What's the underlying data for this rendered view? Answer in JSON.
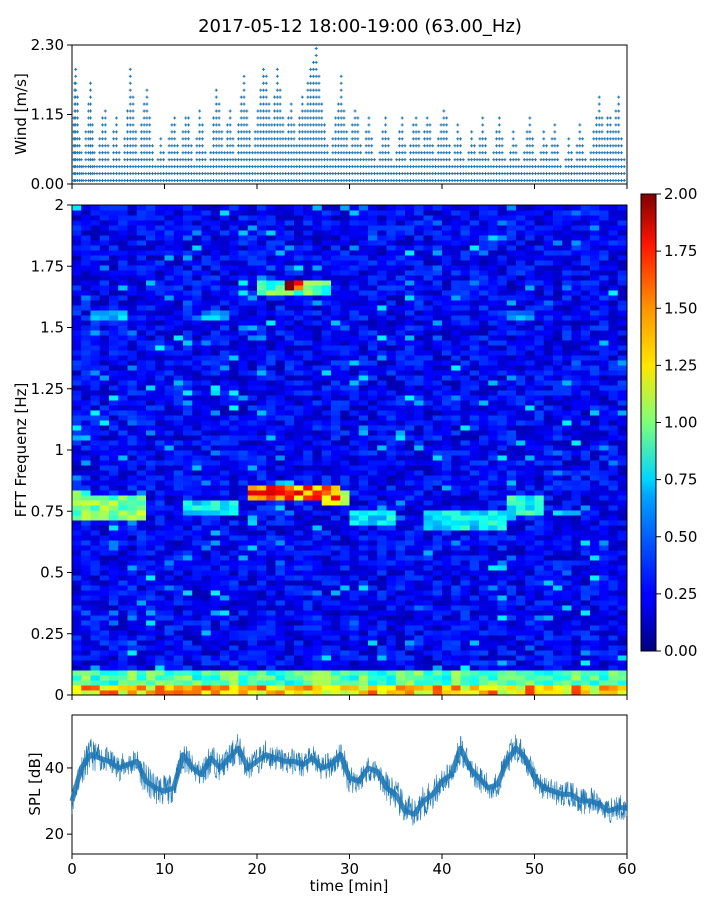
{
  "title": "2017-05-12 18:00-19:00 (63.00_Hz)",
  "colors": {
    "series": "#1f77b4",
    "axis": "#000000",
    "background": "#ffffff"
  },
  "chart_data": [
    {
      "type": "scatter",
      "ylabel": "Wind [m/s]",
      "xlim": [
        0,
        60
      ],
      "ylim": [
        0,
        2.3
      ],
      "yticks": [
        0,
        1.15,
        2.3
      ],
      "ytick_labels": [
        "0.00",
        "1.15",
        "2.30"
      ],
      "xticks": [
        0,
        10,
        20,
        30,
        40,
        50,
        60
      ],
      "xtick_labels_visible": false,
      "grid": false,
      "marker": "+",
      "points": [
        [
          0.2,
          1.2
        ],
        [
          0.3,
          1.7
        ],
        [
          0.4,
          2.0
        ],
        [
          0.6,
          1.5
        ],
        [
          0.8,
          0.8
        ],
        [
          1.0,
          0.6
        ],
        [
          1.2,
          0.4
        ],
        [
          1.5,
          0.9
        ],
        [
          1.8,
          1.4
        ],
        [
          2.0,
          1.7
        ],
        [
          2.2,
          1.0
        ],
        [
          2.4,
          0.6
        ],
        [
          2.7,
          0.3
        ],
        [
          3.0,
          0.8
        ],
        [
          3.3,
          1.1
        ],
        [
          3.6,
          1.3
        ],
        [
          3.9,
          0.7
        ],
        [
          4.2,
          0.4
        ],
        [
          4.5,
          0.9
        ],
        [
          4.8,
          1.1
        ],
        [
          5.1,
          0.6
        ],
        [
          5.4,
          0.3
        ],
        [
          5.7,
          0.8
        ],
        [
          6.0,
          1.3
        ],
        [
          6.3,
          1.9
        ],
        [
          6.6,
          1.5
        ],
        [
          6.9,
          0.9
        ],
        [
          7.2,
          0.5
        ],
        [
          7.5,
          1.0
        ],
        [
          7.8,
          1.4
        ],
        [
          8.1,
          1.6
        ],
        [
          8.4,
          1.1
        ],
        [
          8.7,
          0.7
        ],
        [
          9.0,
          0.3
        ],
        [
          9.3,
          0.5
        ],
        [
          9.6,
          0.8
        ],
        [
          9.9,
          0.6
        ],
        [
          10.2,
          0.4
        ],
        [
          10.5,
          0.8
        ],
        [
          10.8,
          1.0
        ],
        [
          11.1,
          1.2
        ],
        [
          11.4,
          0.7
        ],
        [
          11.7,
          0.5
        ],
        [
          12.0,
          0.9
        ],
        [
          12.3,
          1.2
        ],
        [
          12.6,
          1.1
        ],
        [
          12.9,
          0.7
        ],
        [
          13.2,
          0.4
        ],
        [
          13.5,
          0.8
        ],
        [
          13.8,
          1.3
        ],
        [
          14.1,
          1.0
        ],
        [
          14.4,
          0.6
        ],
        [
          14.7,
          0.3
        ],
        [
          15.0,
          0.6
        ],
        [
          15.3,
          1.1
        ],
        [
          15.6,
          1.6
        ],
        [
          15.9,
          1.4
        ],
        [
          16.2,
          0.9
        ],
        [
          16.5,
          0.6
        ],
        [
          16.8,
          1.0
        ],
        [
          17.1,
          1.3
        ],
        [
          17.4,
          0.8
        ],
        [
          17.7,
          0.5
        ],
        [
          18.0,
          1.0
        ],
        [
          18.3,
          1.5
        ],
        [
          18.6,
          1.8
        ],
        [
          18.9,
          1.3
        ],
        [
          19.2,
          0.9
        ],
        [
          19.5,
          0.6
        ],
        [
          19.8,
          0.9
        ],
        [
          20.1,
          1.3
        ],
        [
          20.4,
          1.6
        ],
        [
          20.7,
          2.0
        ],
        [
          21.0,
          1.8
        ],
        [
          21.3,
          1.4
        ],
        [
          21.6,
          1.0
        ],
        [
          21.9,
          1.5
        ],
        [
          22.2,
          1.9
        ],
        [
          22.5,
          1.6
        ],
        [
          22.8,
          1.2
        ],
        [
          23.1,
          0.8
        ],
        [
          23.4,
          1.1
        ],
        [
          23.7,
          1.4
        ],
        [
          24.0,
          1.0
        ],
        [
          24.3,
          0.7
        ],
        [
          24.6,
          1.2
        ],
        [
          24.9,
          1.5
        ],
        [
          25.2,
          1.3
        ],
        [
          25.5,
          1.7
        ],
        [
          25.8,
          1.9
        ],
        [
          26.1,
          2.1
        ],
        [
          26.4,
          2.3
        ],
        [
          26.7,
          1.8
        ],
        [
          27.0,
          1.4
        ],
        [
          27.3,
          1.0
        ],
        [
          27.6,
          0.7
        ],
        [
          27.9,
          0.5
        ],
        [
          28.2,
          0.8
        ],
        [
          28.5,
          1.1
        ],
        [
          28.8,
          1.4
        ],
        [
          29.1,
          1.8
        ],
        [
          29.4,
          1.3
        ],
        [
          29.7,
          0.9
        ],
        [
          30.0,
          0.6
        ],
        [
          30.3,
          1.0
        ],
        [
          30.6,
          1.3
        ],
        [
          30.9,
          1.1
        ],
        [
          31.2,
          0.7
        ],
        [
          31.5,
          0.5
        ],
        [
          31.8,
          0.9
        ],
        [
          32.1,
          1.2
        ],
        [
          32.4,
          0.8
        ],
        [
          32.7,
          0.5
        ],
        [
          33.0,
          0.3
        ],
        [
          33.3,
          0.6
        ],
        [
          33.6,
          0.9
        ],
        [
          33.9,
          1.2
        ],
        [
          34.2,
          0.8
        ],
        [
          34.5,
          0.5
        ],
        [
          34.8,
          0.3
        ],
        [
          35.1,
          0.6
        ],
        [
          35.4,
          0.9
        ],
        [
          35.7,
          1.1
        ],
        [
          36.0,
          0.7
        ],
        [
          36.3,
          0.4
        ],
        [
          36.6,
          0.7
        ],
        [
          36.9,
          1.0
        ],
        [
          37.2,
          1.2
        ],
        [
          37.5,
          0.9
        ],
        [
          37.8,
          0.6
        ],
        [
          38.1,
          0.9
        ],
        [
          38.4,
          1.2
        ],
        [
          38.7,
          1.0
        ],
        [
          39.0,
          0.7
        ],
        [
          39.3,
          0.5
        ],
        [
          39.6,
          0.8
        ],
        [
          39.9,
          1.0
        ],
        [
          40.2,
          1.3
        ],
        [
          40.5,
          1.1
        ],
        [
          40.8,
          0.7
        ],
        [
          41.1,
          0.4
        ],
        [
          41.4,
          0.7
        ],
        [
          41.7,
          1.0
        ],
        [
          42.0,
          0.8
        ],
        [
          42.3,
          0.5
        ],
        [
          42.6,
          0.3
        ],
        [
          42.9,
          0.6
        ],
        [
          43.2,
          0.9
        ],
        [
          43.5,
          0.7
        ],
        [
          43.8,
          0.5
        ],
        [
          44.1,
          0.8
        ],
        [
          44.4,
          1.1
        ],
        [
          44.7,
          0.8
        ],
        [
          45.0,
          0.5
        ],
        [
          45.3,
          0.3
        ],
        [
          45.6,
          0.6
        ],
        [
          45.9,
          0.9
        ],
        [
          46.2,
          1.1
        ],
        [
          46.5,
          0.8
        ],
        [
          46.8,
          0.5
        ],
        [
          47.1,
          0.3
        ],
        [
          47.4,
          0.6
        ],
        [
          47.7,
          0.9
        ],
        [
          48.0,
          0.7
        ],
        [
          48.3,
          0.5
        ],
        [
          48.6,
          0.3
        ],
        [
          48.9,
          0.6
        ],
        [
          49.2,
          0.9
        ],
        [
          49.5,
          1.1
        ],
        [
          49.8,
          0.8
        ],
        [
          50.1,
          0.5
        ],
        [
          50.4,
          0.3
        ],
        [
          50.7,
          0.6
        ],
        [
          51.0,
          0.9
        ],
        [
          51.3,
          0.7
        ],
        [
          51.6,
          0.5
        ],
        [
          51.9,
          0.8
        ],
        [
          52.2,
          1.0
        ],
        [
          52.5,
          0.7
        ],
        [
          52.8,
          0.4
        ],
        [
          53.1,
          0.2
        ],
        [
          53.4,
          0.5
        ],
        [
          53.7,
          0.8
        ],
        [
          54.0,
          0.6
        ],
        [
          54.3,
          0.4
        ],
        [
          54.6,
          0.7
        ],
        [
          54.9,
          1.0
        ],
        [
          55.2,
          0.8
        ],
        [
          55.5,
          0.5
        ],
        [
          55.8,
          0.3
        ],
        [
          56.1,
          0.6
        ],
        [
          56.4,
          0.9
        ],
        [
          56.7,
          1.2
        ],
        [
          57.0,
          1.5
        ],
        [
          57.3,
          1.1
        ],
        [
          57.6,
          0.8
        ],
        [
          57.9,
          1.1
        ],
        [
          58.2,
          1.2
        ],
        [
          58.5,
          0.9
        ],
        [
          58.8,
          1.3
        ],
        [
          59.1,
          1.5
        ],
        [
          59.4,
          0.8
        ],
        [
          59.7,
          0.5
        ]
      ]
    },
    {
      "type": "heatmap",
      "ylabel": "FFT Frequenz [Hz]",
      "xlim": [
        0,
        60
      ],
      "ylim": [
        0,
        2
      ],
      "yticks": [
        0,
        0.25,
        0.5,
        0.75,
        1,
        1.25,
        1.5,
        1.75,
        2
      ],
      "ytick_labels": [
        "0",
        "0.25",
        "0.5",
        "0.75",
        "1",
        "1.25",
        "1.5",
        "1.75",
        "2"
      ],
      "xtick_labels_visible": false,
      "colormap": "jet",
      "background_level": 0.25,
      "colorbar": {
        "vmin": 0,
        "vmax": 2,
        "ticks": [
          0,
          0.25,
          0.5,
          0.75,
          1.0,
          1.25,
          1.5,
          1.75,
          2.0
        ],
        "tick_labels": [
          "0.00",
          "0.25",
          "0.50",
          "0.75",
          "1.00",
          "1.25",
          "1.50",
          "1.75",
          "2.00"
        ]
      },
      "features": [
        {
          "x0": 0,
          "x1": 60,
          "f": 0.01,
          "df": 0.03,
          "value": 1.5
        },
        {
          "x0": 0,
          "x1": 60,
          "f": 0.05,
          "df": 0.05,
          "value": 1.0
        },
        {
          "x0": 0,
          "x1": 2,
          "f": 0.8,
          "df": 0.03,
          "value": 1.0
        },
        {
          "x0": 0,
          "x1": 8,
          "f": 0.76,
          "df": 0.05,
          "value": 1.1
        },
        {
          "x0": 12,
          "x1": 18,
          "f": 0.76,
          "df": 0.03,
          "value": 0.8
        },
        {
          "x0": 19,
          "x1": 29,
          "f": 0.82,
          "df": 0.03,
          "value": 1.7
        },
        {
          "x0": 27,
          "x1": 30,
          "f": 0.8,
          "df": 0.03,
          "value": 1.3
        },
        {
          "x0": 30,
          "x1": 35,
          "f": 0.72,
          "df": 0.03,
          "value": 0.8
        },
        {
          "x0": 38,
          "x1": 47,
          "f": 0.72,
          "df": 0.04,
          "value": 0.8
        },
        {
          "x0": 47,
          "x1": 51,
          "f": 0.78,
          "df": 0.04,
          "value": 0.9
        },
        {
          "x0": 20,
          "x1": 28,
          "f": 1.67,
          "df": 0.03,
          "value": 1.0
        },
        {
          "x0": 23,
          "x1": 25,
          "f": 1.67,
          "df": 0.02,
          "value": 1.9
        },
        {
          "x0": 2,
          "x1": 6,
          "f": 1.56,
          "df": 0.02,
          "value": 0.7
        },
        {
          "x0": 14,
          "x1": 17,
          "f": 1.55,
          "df": 0.02,
          "value": 0.6
        },
        {
          "x0": 47,
          "x1": 50,
          "f": 1.55,
          "df": 0.02,
          "value": 0.6
        }
      ]
    },
    {
      "type": "line",
      "ylabel": "SPL [dB]",
      "xlabel": "time [min]",
      "xlim": [
        0,
        60
      ],
      "ylim": [
        14,
        56
      ],
      "yticks": [
        20,
        40
      ],
      "ytick_labels": [
        "20",
        "40"
      ],
      "xticks": [
        0,
        10,
        20,
        30,
        40,
        50,
        60
      ],
      "xtick_labels": [
        "0",
        "10",
        "20",
        "30",
        "40",
        "50",
        "60"
      ],
      "grid": false,
      "x": [
        0,
        1,
        2,
        3,
        4,
        5,
        6,
        7,
        8,
        9,
        10,
        11,
        12,
        13,
        14,
        15,
        16,
        17,
        18,
        19,
        20,
        21,
        22,
        23,
        24,
        25,
        26,
        27,
        28,
        29,
        30,
        31,
        32,
        33,
        34,
        35,
        36,
        37,
        38,
        39,
        40,
        41,
        42,
        43,
        44,
        45,
        46,
        47,
        48,
        49,
        50,
        51,
        52,
        53,
        54,
        55,
        56,
        57,
        58,
        59,
        60
      ],
      "y": [
        30,
        40,
        44,
        43,
        42,
        40,
        41,
        42,
        36,
        34,
        33,
        34,
        44,
        40,
        38,
        43,
        40,
        43,
        46,
        40,
        42,
        44,
        43,
        42,
        42,
        41,
        43,
        40,
        41,
        44,
        37,
        36,
        40,
        39,
        34,
        32,
        27,
        26,
        30,
        32,
        36,
        38,
        46,
        40,
        37,
        34,
        35,
        42,
        46,
        43,
        37,
        34,
        33,
        32,
        32,
        30,
        30,
        29,
        27,
        28,
        28
      ],
      "amplitude": [
        4,
        5,
        5,
        4,
        4,
        4,
        4,
        4,
        5,
        5,
        5,
        4,
        5,
        4,
        4,
        5,
        4,
        4,
        5,
        4,
        4,
        5,
        4,
        4,
        4,
        4,
        4,
        4,
        4,
        5,
        5,
        4,
        4,
        4,
        5,
        5,
        5,
        5,
        5,
        5,
        4,
        4,
        5,
        4,
        4,
        4,
        4,
        5,
        5,
        4,
        4,
        4,
        4,
        4,
        4,
        4,
        4,
        4,
        4,
        4,
        4
      ]
    }
  ]
}
